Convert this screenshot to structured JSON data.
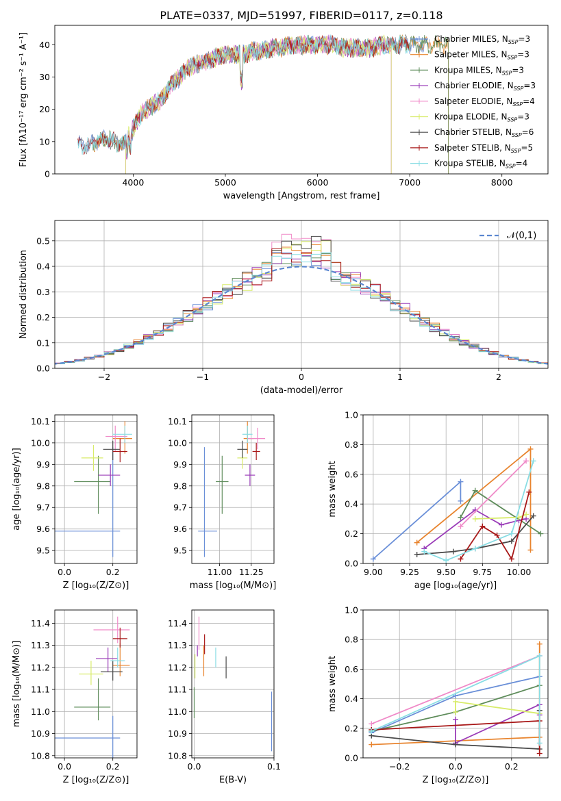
{
  "title": "PLATE=0337, MJD=51997, FIBERID=0117, z=0.118",
  "colors": [
    "#6a8fd8",
    "#e8842e",
    "#5e8c5a",
    "#9a3cb8",
    "#f08ac8",
    "#d8ec6a",
    "#4a4a4a",
    "#a81818",
    "#88dde4"
  ],
  "chart_data": [
    {
      "id": "spectrum",
      "type": "line",
      "xlabel": "wavelength [Angstrom, rest frame]",
      "ylabel": "Flux [fλ10⁻¹⁷ erg cm⁻² s⁻¹ A⁻¹]",
      "xlim": [
        3150,
        8500
      ],
      "ylim": [
        0,
        46
      ],
      "xticks": [
        4000,
        5000,
        6000,
        7000,
        8000
      ],
      "yticks": [
        0,
        10,
        20,
        30,
        40
      ],
      "legend_position": "upper right",
      "legend": [
        "Chabrier MILES, N_SSP=3",
        "Salpeter MILES, N_SSP=3",
        "Kroupa MILES, N_SSP=3",
        "Chabrier ELODIE, N_SSP=3",
        "Salpeter ELODIE, N_SSP=4",
        "Kroupa ELODIE, N_SSP=3",
        "Chabrier STELIB, N_SSP=6",
        "Salpeter STELIB, N_SSP=5",
        "Kroupa STELIB, N_SSP=4"
      ],
      "continuum": {
        "x": [
          3400,
          3500,
          3600,
          3700,
          3800,
          3900,
          4000,
          4100,
          4200,
          4300,
          4400,
          4500,
          4600,
          4700,
          4800,
          4900,
          5000,
          5100,
          5200,
          5300,
          5400,
          5500,
          5600,
          5700,
          5800,
          5900,
          6000,
          6100,
          6200,
          6300,
          6400,
          6500,
          6600,
          6700,
          6800,
          6900,
          7000,
          7100,
          7200
        ],
        "y": [
          9,
          8.5,
          10,
          11,
          10,
          9,
          14,
          19,
          21,
          23,
          27,
          30,
          33,
          34,
          35,
          36,
          37,
          37,
          37,
          38,
          38,
          39,
          39,
          40,
          40,
          40,
          40,
          40,
          40,
          39,
          39,
          39,
          39,
          40,
          40,
          40,
          40,
          40,
          40
        ]
      },
      "model_ranges": [
        [
          3400,
          7220
        ],
        [
          3560,
          7420
        ],
        [
          3560,
          7420
        ],
        [
          3920,
          6800
        ],
        [
          3920,
          6800
        ],
        [
          3920,
          6800
        ],
        [
          3400,
          7000
        ],
        [
          3400,
          7000
        ],
        [
          3400,
          7000
        ]
      ]
    },
    {
      "id": "residual-histogram",
      "type": "step-histogram",
      "xlabel": "(data-model)/error",
      "ylabel": "Normed distribution",
      "xlim": [
        -2.5,
        2.5
      ],
      "ylim": [
        0,
        0.58
      ],
      "xticks": [
        -2,
        -1,
        0,
        1,
        2
      ],
      "yticks": [
        0.0,
        0.1,
        0.2,
        0.3,
        0.4,
        0.5
      ],
      "bin_width": 0.1,
      "normal_curve_label": "𝒩(0,1)",
      "legend_position": "upper right",
      "max_values": [
        0.46,
        0.5,
        0.46,
        0.44,
        0.55,
        0.5,
        0.54,
        0.47,
        0.48
      ]
    },
    {
      "id": "age-vs-Z",
      "type": "errorbar",
      "xlabel": "Z [log₁₀(Z/Z⊙)]",
      "ylabel": "age  [log₁₀(age/yr)]",
      "xlim": [
        -0.04,
        0.3
      ],
      "ylim": [
        9.44,
        10.13
      ],
      "xticks": [
        0.0,
        0.2
      ],
      "yticks": [
        9.5,
        9.6,
        9.7,
        9.8,
        9.9,
        10.0,
        10.1
      ],
      "points": [
        {
          "x": 0.2,
          "y": 9.59,
          "xerr": [
            0.25,
            0.03
          ],
          "yerr": [
            0.12,
            0.39
          ]
        },
        {
          "x": 0.25,
          "y": 10.02,
          "xerr": [
            0.05,
            0.03
          ],
          "yerr": [
            0.07,
            0.08
          ]
        },
        {
          "x": 0.14,
          "y": 9.82,
          "xerr": [
            0.1,
            0.05
          ],
          "yerr": [
            0.15,
            0.12
          ]
        },
        {
          "x": 0.19,
          "y": 9.85,
          "xerr": [
            0.05,
            0.04
          ],
          "yerr": [
            0.05,
            0.05
          ]
        },
        {
          "x": 0.21,
          "y": 10.03,
          "xerr": [
            0.04,
            0.05
          ],
          "yerr": [
            0.07,
            0.05
          ]
        },
        {
          "x": 0.12,
          "y": 9.93,
          "xerr": [
            0.05,
            0.04
          ],
          "yerr": [
            0.06,
            0.06
          ]
        },
        {
          "x": 0.2,
          "y": 9.97,
          "xerr": [
            0.04,
            0.03
          ],
          "yerr": [
            0.05,
            0.04
          ]
        },
        {
          "x": 0.23,
          "y": 9.96,
          "xerr": [
            0.03,
            0.03
          ],
          "yerr": [
            0.05,
            0.06
          ]
        },
        {
          "x": 0.25,
          "y": 10.04,
          "xerr": [
            0.05,
            0.03
          ],
          "yerr": [
            0.04,
            0.04
          ]
        }
      ]
    },
    {
      "id": "age-vs-mass",
      "type": "errorbar",
      "xlabel": "mass [log₁₀(M/M⊙)]",
      "ylabel": "",
      "xlim": [
        10.78,
        11.43
      ],
      "ylim": [
        9.44,
        10.13
      ],
      "xticks": [
        11.0,
        11.25
      ],
      "yticks": [
        9.5,
        9.6,
        9.7,
        9.8,
        9.9,
        10.0,
        10.1
      ],
      "points": [
        {
          "x": 10.88,
          "y": 9.59,
          "xerr": [
            0.05,
            0.1
          ],
          "yerr": [
            0.12,
            0.39
          ]
        },
        {
          "x": 11.22,
          "y": 10.02,
          "xerr": [
            0.03,
            0.05
          ],
          "yerr": [
            0.07,
            0.08
          ]
        },
        {
          "x": 11.02,
          "y": 9.82,
          "xerr": [
            0.05,
            0.05
          ],
          "yerr": [
            0.15,
            0.12
          ]
        },
        {
          "x": 11.24,
          "y": 9.85,
          "xerr": [
            0.04,
            0.04
          ],
          "yerr": [
            0.05,
            0.05
          ]
        },
        {
          "x": 11.3,
          "y": 10.02,
          "xerr": [
            0.08,
            0.06
          ],
          "yerr": [
            0.05,
            0.05
          ]
        },
        {
          "x": 11.18,
          "y": 9.93,
          "xerr": [
            0.04,
            0.04
          ],
          "yerr": [
            0.05,
            0.04
          ]
        },
        {
          "x": 11.18,
          "y": 9.97,
          "xerr": [
            0.04,
            0.04
          ],
          "yerr": [
            0.04,
            0.04
          ]
        },
        {
          "x": 11.29,
          "y": 9.96,
          "xerr": [
            0.03,
            0.03
          ],
          "yerr": [
            0.04,
            0.04
          ]
        },
        {
          "x": 11.22,
          "y": 10.04,
          "xerr": [
            0.04,
            0.04
          ],
          "yerr": [
            0.04,
            0.04
          ]
        }
      ]
    },
    {
      "id": "massweight-vs-age",
      "type": "line",
      "xlabel": "age  [log₁₀(age/yr)]",
      "ylabel": "mass weight",
      "xlim": [
        8.93,
        10.2
      ],
      "ylim": [
        0,
        1
      ],
      "xticks": [
        9.0,
        9.25,
        9.5,
        9.75,
        10.0
      ],
      "yticks": [
        0.0,
        0.2,
        0.4,
        0.6,
        0.8,
        1.0
      ],
      "series": [
        {
          "x": [
            9.0,
            9.6,
            9.6
          ],
          "y": [
            0.03,
            0.55,
            0.42
          ]
        },
        {
          "x": [
            9.3,
            10.08,
            10.08
          ],
          "y": [
            0.14,
            0.77,
            0.09
          ]
        },
        {
          "x": [
            9.6,
            9.7,
            10.15
          ],
          "y": [
            0.31,
            0.49,
            0.2
          ]
        },
        {
          "x": [
            9.35,
            9.7,
            9.88,
            10.0,
            10.05
          ],
          "y": [
            0.1,
            0.36,
            0.26,
            0.29,
            0.3
          ]
        },
        {
          "x": [
            9.6,
            10.05
          ],
          "y": [
            0.25,
            0.69
          ]
        },
        {
          "x": [
            9.7,
            10.0,
            10.05
          ],
          "y": [
            0.3,
            0.31,
            0.33
          ]
        },
        {
          "x": [
            9.3,
            9.55,
            9.7,
            9.95,
            10.1
          ],
          "y": [
            0.06,
            0.08,
            0.1,
            0.15,
            0.32
          ]
        },
        {
          "x": [
            9.6,
            9.75,
            9.85,
            9.95,
            10.07
          ],
          "y": [
            0.03,
            0.25,
            0.19,
            0.03,
            0.48
          ]
        },
        {
          "x": [
            9.35,
            9.5,
            9.7,
            9.95,
            10.1
          ],
          "y": [
            0.08,
            0.02,
            0.1,
            0.2,
            0.69
          ]
        }
      ]
    },
    {
      "id": "mass-vs-Z",
      "type": "errorbar",
      "xlabel": "Z [log₁₀(Z/Z⊙)]",
      "ylabel": "mass [log₁₀(M/M⊙)]",
      "xlim": [
        -0.04,
        0.3
      ],
      "ylim": [
        10.79,
        11.46
      ],
      "xticks": [
        0.0,
        0.2
      ],
      "yticks": [
        10.8,
        10.9,
        11.0,
        11.1,
        11.2,
        11.3,
        11.4
      ],
      "points": [
        {
          "x": 0.2,
          "y": 10.88,
          "xerr": [
            0.25,
            0.03
          ],
          "yerr": [
            0.1,
            0.1
          ]
        },
        {
          "x": 0.23,
          "y": 11.21,
          "xerr": [
            0.03,
            0.04
          ],
          "yerr": [
            0.05,
            0.1
          ]
        },
        {
          "x": 0.14,
          "y": 11.02,
          "xerr": [
            0.1,
            0.05
          ],
          "yerr": [
            0.06,
            0.13
          ]
        },
        {
          "x": 0.18,
          "y": 11.24,
          "xerr": [
            0.05,
            0.04
          ],
          "yerr": [
            0.06,
            0.05
          ]
        },
        {
          "x": 0.22,
          "y": 11.37,
          "xerr": [
            0.1,
            0.05
          ],
          "yerr": [
            0.06,
            0.06
          ]
        },
        {
          "x": 0.11,
          "y": 11.17,
          "xerr": [
            0.05,
            0.05
          ],
          "yerr": [
            0.05,
            0.06
          ]
        },
        {
          "x": 0.2,
          "y": 11.18,
          "xerr": [
            0.05,
            0.04
          ],
          "yerr": [
            0.04,
            0.05
          ]
        },
        {
          "x": 0.23,
          "y": 11.33,
          "xerr": [
            0.03,
            0.03
          ],
          "yerr": [
            0.04,
            0.05
          ]
        },
        {
          "x": 0.22,
          "y": 11.23,
          "xerr": [
            0.03,
            0.03
          ],
          "yerr": [
            0.03,
            0.06
          ]
        }
      ]
    },
    {
      "id": "mass-vs-EBV",
      "type": "errorbar",
      "xlabel": "E(B-V)",
      "ylabel": "",
      "xlim": [
        -0.003,
        0.1
      ],
      "ylim": [
        10.79,
        11.46
      ],
      "xticks": [
        0.0,
        0.1
      ],
      "yticks": [
        10.8,
        10.9,
        11.0,
        11.1,
        11.2,
        11.3,
        11.4
      ],
      "points": [
        {
          "x": 0.097,
          "y": 10.95,
          "yerr": [
            0.13,
            0.14
          ]
        },
        {
          "x": 0.012,
          "y": 11.21,
          "yerr": [
            0.05,
            0.09
          ]
        },
        {
          "x": 0.0,
          "y": 11.02,
          "yerr": [
            0.05,
            0.09
          ]
        },
        {
          "x": 0.004,
          "y": 11.27,
          "yerr": [
            0.02,
            0.03
          ]
        },
        {
          "x": 0.006,
          "y": 11.36,
          "yerr": [
            0.08,
            0.07
          ]
        },
        {
          "x": 0.001,
          "y": 11.2,
          "yerr": [
            0.05,
            0.06
          ]
        },
        {
          "x": 0.04,
          "y": 11.2,
          "yerr": [
            0.05,
            0.05
          ]
        },
        {
          "x": 0.013,
          "y": 11.3,
          "yerr": [
            0.04,
            0.05
          ]
        },
        {
          "x": 0.027,
          "y": 11.24,
          "yerr": [
            0.04,
            0.05
          ]
        }
      ]
    },
    {
      "id": "massweight-vs-Z",
      "type": "line",
      "xlabel": "Z [log₁₀(Z/Z⊙)]",
      "ylabel": "mass weight",
      "xlim": [
        -0.33,
        0.33
      ],
      "ylim": [
        0,
        1
      ],
      "xticks": [
        -0.2,
        0.0,
        0.2
      ],
      "yticks": [
        0.0,
        0.2,
        0.4,
        0.6,
        0.8,
        1.0
      ],
      "series": [
        {
          "x": [
            -0.3,
            0.0,
            0.3
          ],
          "y": [
            0.17,
            0.42,
            0.55
          ]
        },
        {
          "x": [
            -0.3,
            0.3,
            0.3
          ],
          "y": [
            0.09,
            0.14,
            0.77
          ]
        },
        {
          "x": [
            -0.3,
            0.0,
            0.3
          ],
          "y": [
            0.18,
            0.31,
            0.49
          ]
        },
        {
          "x": [
            0.0,
            0.0,
            0.3,
            0.3
          ],
          "y": [
            0.26,
            0.1,
            0.36,
            0.29
          ]
        },
        {
          "x": [
            -0.3,
            0.3
          ],
          "y": [
            0.23,
            0.69
          ]
        },
        {
          "x": [
            0.0,
            0.0,
            0.3
          ],
          "y": [
            0.31,
            0.38,
            0.3
          ]
        },
        {
          "x": [
            -0.3,
            0.0,
            0.3,
            0.3
          ],
          "y": [
            0.15,
            0.09,
            0.06,
            0.32
          ]
        },
        {
          "x": [
            -0.3,
            0.3,
            0.3
          ],
          "y": [
            0.19,
            0.25,
            0.03
          ]
        },
        {
          "x": [
            -0.3,
            0.3,
            0.3
          ],
          "y": [
            0.18,
            0.69,
            0.1
          ]
        }
      ]
    }
  ]
}
